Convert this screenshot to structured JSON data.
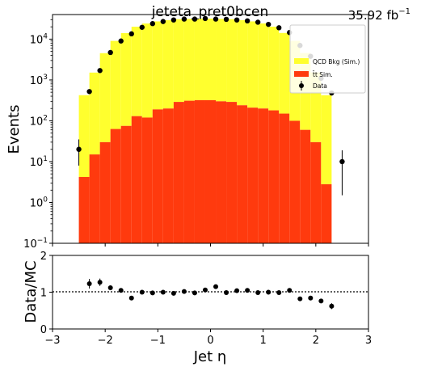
{
  "chart_data": [
    {
      "type": "bar",
      "panel": "main",
      "title": "jeteta_pret0bcen",
      "lumi_label": "35.92 fb",
      "lumi_unit_exp": "−1",
      "ylabel": "Events",
      "xlabel": "",
      "yscale": "log",
      "ylim": [
        0.1,
        40000
      ],
      "xlim": [
        -3,
        3
      ],
      "stacked": true,
      "x": [
        -2.4,
        -2.2,
        -2.0,
        -1.8,
        -1.6,
        -1.4,
        -1.2,
        -1.0,
        -0.8,
        -0.6,
        -0.4,
        -0.2,
        0.0,
        0.2,
        0.4,
        0.6,
        0.8,
        1.0,
        1.2,
        1.4,
        1.6,
        1.8,
        2.0,
        2.2
      ],
      "bin_width": 0.2,
      "series": [
        {
          "name": "t̄t Sim.",
          "color": "#ff3a0e",
          "values": [
            4.2,
            15,
            30,
            63,
            75,
            130,
            120,
            190,
            200,
            290,
            310,
            320,
            320,
            300,
            290,
            240,
            210,
            200,
            180,
            150,
            100,
            60,
            30,
            2.8
          ]
        },
        {
          "name": "QCD Bkg (Sim.)",
          "color": "#ffff2e",
          "values": [
            420,
            1500,
            4500,
            9000,
            14000,
            20000,
            24000,
            27000,
            29000,
            30500,
            31000,
            31500,
            31500,
            31000,
            30500,
            29000,
            27000,
            24000,
            20000,
            14000,
            9000,
            4500,
            1500,
            420
          ]
        }
      ],
      "data_points": {
        "name": "Data",
        "x": [
          -2.5,
          -2.3,
          -2.1,
          -1.9,
          -1.7,
          -1.5,
          -1.3,
          -1.1,
          -0.9,
          -0.7,
          -0.5,
          -0.3,
          -0.1,
          0.1,
          0.3,
          0.5,
          0.7,
          0.9,
          1.1,
          1.3,
          1.5,
          1.7,
          1.9,
          2.1,
          2.3,
          2.5
        ],
        "y": [
          20,
          520,
          1700,
          4700,
          9000,
          13500,
          19500,
          24000,
          27000,
          29500,
          31000,
          31000,
          32000,
          31000,
          30500,
          29500,
          28000,
          26000,
          23000,
          19000,
          14500,
          7000,
          3800,
          1100,
          480,
          10
        ],
        "err_up": [
          15,
          0,
          0,
          0,
          0,
          0,
          0,
          0,
          0,
          0,
          0,
          0,
          0,
          0,
          0,
          0,
          0,
          0,
          0,
          0,
          0,
          0,
          0,
          0,
          0,
          9
        ],
        "err_down": [
          12,
          0,
          0,
          0,
          0,
          0,
          0,
          0,
          0,
          0,
          0,
          0,
          0,
          0,
          0,
          0,
          0,
          0,
          0,
          0,
          0,
          0,
          0,
          0,
          0,
          8.5
        ]
      },
      "yticks": [
        {
          "v": 0.1,
          "m": "10",
          "e": "−1"
        },
        {
          "v": 1,
          "m": "10",
          "e": "0"
        },
        {
          "v": 10,
          "m": "10",
          "e": "1"
        },
        {
          "v": 100,
          "m": "10",
          "e": "2"
        },
        {
          "v": 1000,
          "m": "10",
          "e": "3"
        },
        {
          "v": 10000,
          "m": "10",
          "e": "4"
        }
      ],
      "legend": {
        "placement": "top-right",
        "entries": [
          "QCD Bkg (Sim.)",
          "t̄t Sim.",
          "Data"
        ]
      }
    },
    {
      "type": "scatter",
      "panel": "ratio",
      "ylabel": "Data/MC",
      "xlabel": "Jet η",
      "ylim": [
        0,
        2
      ],
      "xlim": [
        -3,
        3
      ],
      "reference_line": 1,
      "x": [
        -2.3,
        -2.1,
        -1.9,
        -1.7,
        -1.5,
        -1.3,
        -1.1,
        -0.9,
        -0.7,
        -0.5,
        -0.3,
        -0.1,
        0.1,
        0.3,
        0.5,
        0.7,
        0.9,
        1.1,
        1.3,
        1.5,
        1.7,
        1.9,
        2.1,
        2.3
      ],
      "y": [
        1.23,
        1.27,
        1.12,
        1.05,
        0.84,
        1.0,
        0.98,
        1.0,
        0.97,
        1.02,
        0.98,
        1.06,
        1.15,
        0.99,
        1.04,
        1.05,
        0.99,
        1.0,
        0.99,
        1.05,
        0.82,
        0.84,
        0.76,
        0.62
      ],
      "err": [
        0.13,
        0.1,
        0.06,
        0.03,
        0.03,
        0.02,
        0.02,
        0.02,
        0.02,
        0.02,
        0.02,
        0.02,
        0.02,
        0.02,
        0.02,
        0.02,
        0.02,
        0.02,
        0.02,
        0.02,
        0.02,
        0.02,
        0.05,
        0.08
      ],
      "xticks": [
        "−3",
        "−2",
        "−1",
        "0",
        "1",
        "2",
        "3"
      ],
      "yticks": [
        "0",
        "1",
        "2"
      ]
    }
  ]
}
